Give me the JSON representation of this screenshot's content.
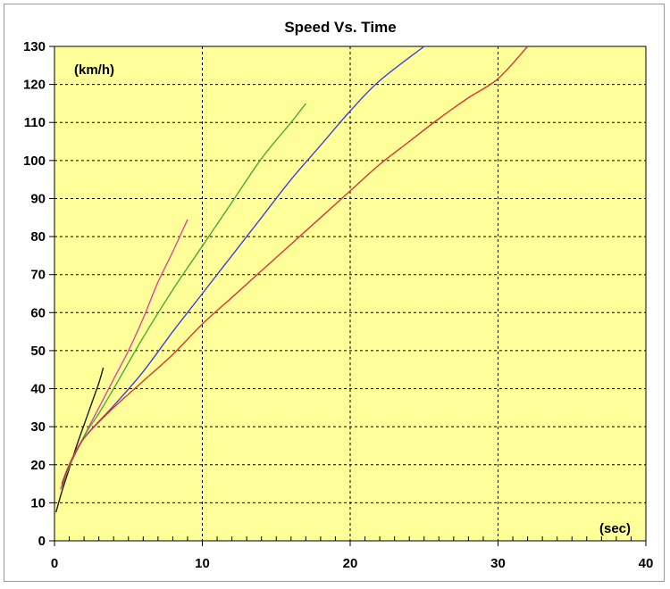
{
  "chart_data": {
    "type": "line",
    "title": "Speed Vs. Time",
    "ylabel": "(km/h)",
    "xlabel": "(sec)",
    "xlim": [
      0,
      40
    ],
    "ylim": [
      0,
      130
    ],
    "x_ticks": [
      "0",
      "10",
      "20",
      "30",
      "40"
    ],
    "y_ticks": [
      "0",
      "10",
      "20",
      "30",
      "40",
      "50",
      "60",
      "70",
      "80",
      "90",
      "100",
      "110",
      "120",
      "130"
    ],
    "grid": true,
    "plot_background": "#ffff99",
    "series": [
      {
        "color": "#1a1a1a",
        "points": [
          [
            0.1,
            7.5
          ],
          [
            0.5,
            13
          ],
          [
            1,
            19
          ],
          [
            1.5,
            25
          ],
          [
            2,
            30.5
          ],
          [
            2.5,
            36
          ],
          [
            3,
            41.5
          ],
          [
            3.3,
            45.5
          ]
        ]
      },
      {
        "color": "#e0489f",
        "points": [
          [
            0.4,
            13.5
          ],
          [
            1,
            19.5
          ],
          [
            2,
            27.5
          ],
          [
            3,
            35
          ],
          [
            4,
            42.5
          ],
          [
            5,
            50
          ],
          [
            6,
            58.5
          ],
          [
            7,
            68
          ],
          [
            8,
            76
          ],
          [
            9,
            84.5
          ]
        ]
      },
      {
        "color": "#4aaa3a",
        "points": [
          [
            0.5,
            14
          ],
          [
            1,
            19.5
          ],
          [
            2,
            27.5
          ],
          [
            3,
            33.5
          ],
          [
            4,
            40
          ],
          [
            6,
            53.5
          ],
          [
            8,
            66
          ],
          [
            10,
            77.5
          ],
          [
            12,
            89
          ],
          [
            14,
            100.5
          ],
          [
            16,
            110
          ],
          [
            17,
            115
          ]
        ]
      },
      {
        "color": "#4040dd",
        "points": [
          [
            0.5,
            15
          ],
          [
            1,
            20
          ],
          [
            2,
            27
          ],
          [
            4,
            35.5
          ],
          [
            6,
            44.5
          ],
          [
            8,
            55
          ],
          [
            10,
            65
          ],
          [
            12,
            75
          ],
          [
            14,
            85
          ],
          [
            16,
            95
          ],
          [
            18,
            104
          ],
          [
            20,
            113
          ],
          [
            22,
            121
          ],
          [
            25,
            130
          ]
        ]
      },
      {
        "color": "#dd3333",
        "points": [
          [
            0.5,
            14.5
          ],
          [
            1,
            20
          ],
          [
            2,
            27
          ],
          [
            4,
            35
          ],
          [
            6,
            42
          ],
          [
            8,
            49
          ],
          [
            10,
            57
          ],
          [
            12,
            64
          ],
          [
            14,
            71
          ],
          [
            16,
            78
          ],
          [
            18,
            85
          ],
          [
            20,
            92
          ],
          [
            22,
            99
          ],
          [
            24,
            105
          ],
          [
            26,
            111
          ],
          [
            28,
            116.5
          ],
          [
            30,
            121.5
          ],
          [
            32,
            130
          ]
        ]
      }
    ]
  }
}
